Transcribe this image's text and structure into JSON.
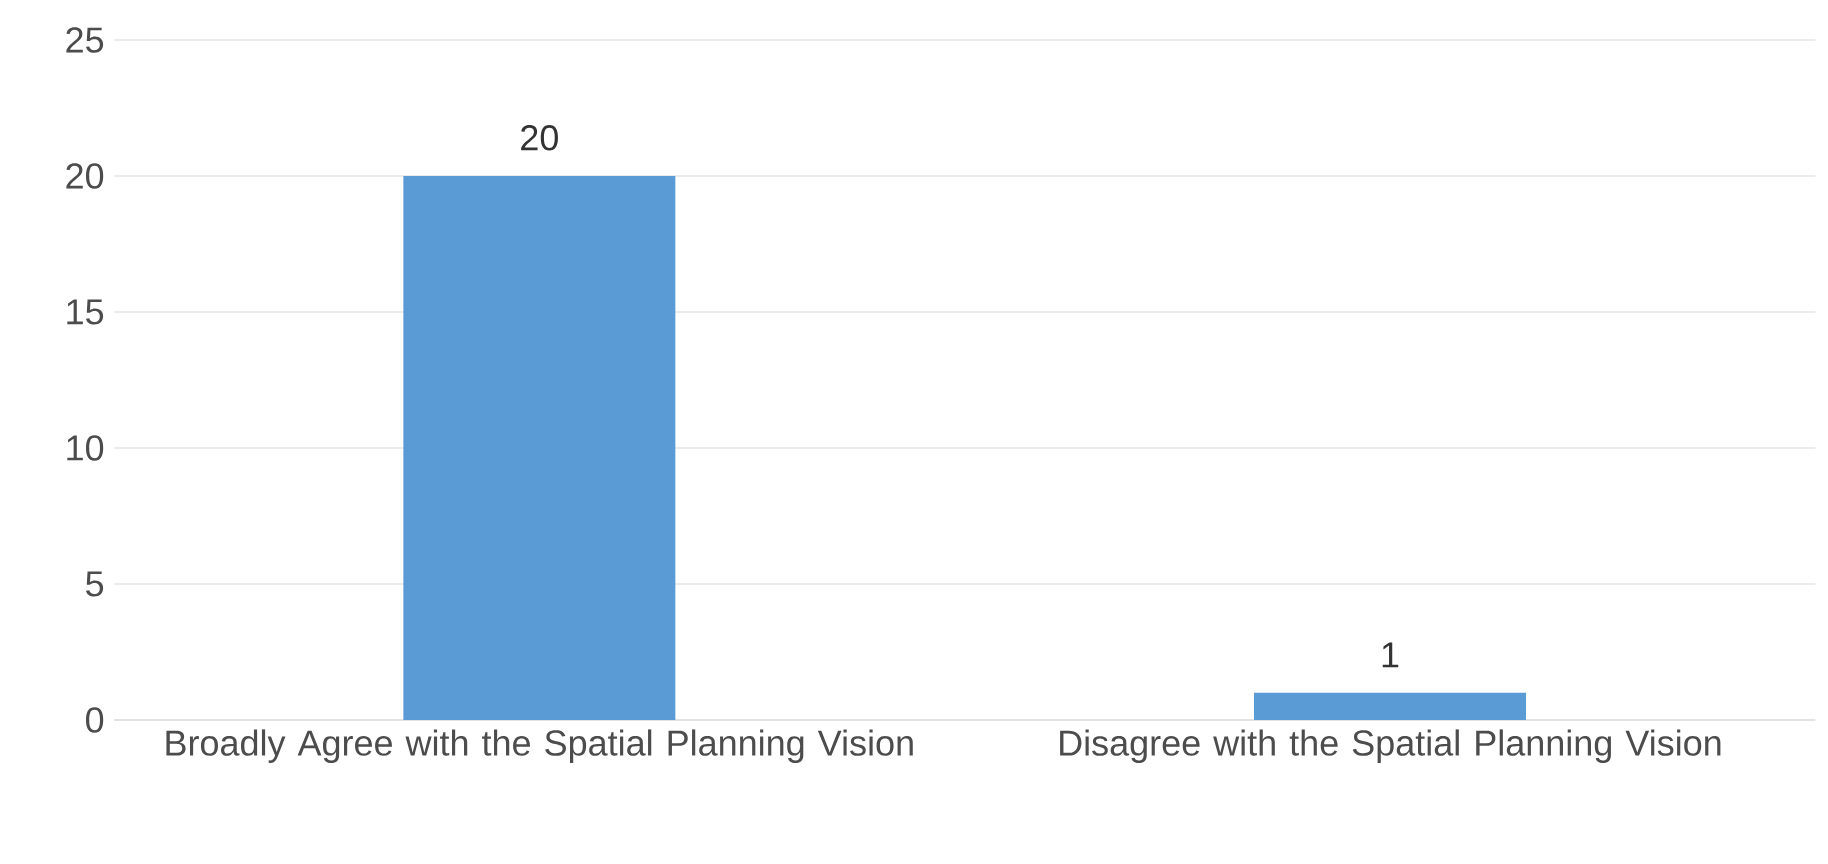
{
  "chart_data": {
    "type": "bar",
    "categories": [
      "Broadly Agree with the Spatial Planning Vision",
      "Disagree with the Spatial Planning Vision"
    ],
    "values": [
      20,
      1
    ],
    "color": "#5b9bd5",
    "ylim": [
      0,
      25
    ],
    "yticks": [
      0,
      5,
      10,
      15,
      20,
      25
    ],
    "grid": "y",
    "data_labels": true
  }
}
